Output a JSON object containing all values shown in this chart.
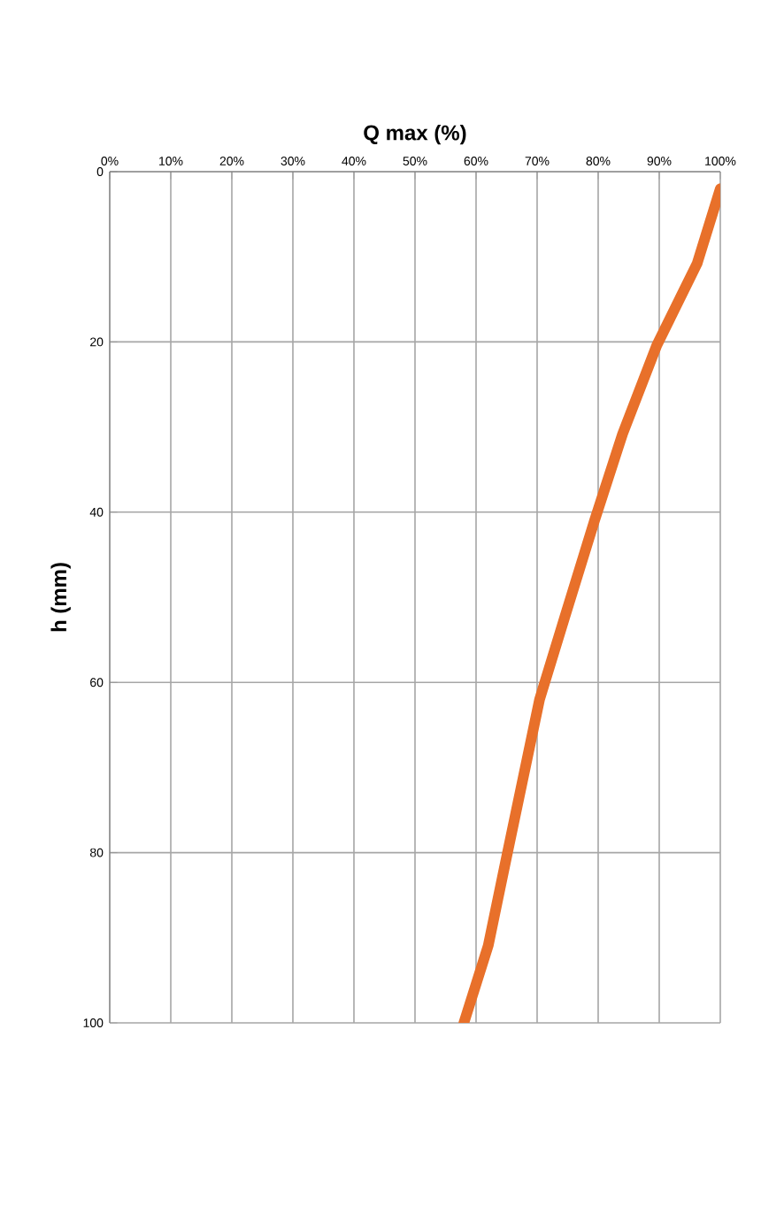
{
  "chart_data": {
    "type": "line",
    "xlabel": "Q max (%)",
    "ylabel": "h (mm)",
    "x": [
      100,
      96.2,
      89.6,
      84,
      79.4,
      74.5,
      70.4,
      65,
      62,
      58
    ],
    "series": [
      {
        "color": "#e8702a",
        "values": [
          2,
          10.8,
          20.4,
          30.8,
          41,
          52.4,
          62,
          80.5,
          90.9,
          100
        ]
      }
    ],
    "xlim": [
      0,
      100
    ],
    "xticks": [
      {
        "value": 0,
        "label": "0%"
      },
      {
        "value": 10,
        "label": "10%"
      },
      {
        "value": 20,
        "label": "20%"
      },
      {
        "value": 30,
        "label": "30%"
      },
      {
        "value": 40,
        "label": "40%"
      },
      {
        "value": 50,
        "label": "50%"
      },
      {
        "value": 60,
        "label": "60%"
      },
      {
        "value": 70,
        "label": "70%"
      },
      {
        "value": 80,
        "label": "80%"
      },
      {
        "value": 90,
        "label": "90%"
      },
      {
        "value": 100,
        "label": "100%"
      }
    ],
    "ylim": [
      100,
      0
    ],
    "yticks": [
      0,
      20,
      40,
      60,
      80,
      100
    ],
    "grid": true,
    "marker": "none",
    "line_style": "solid"
  }
}
